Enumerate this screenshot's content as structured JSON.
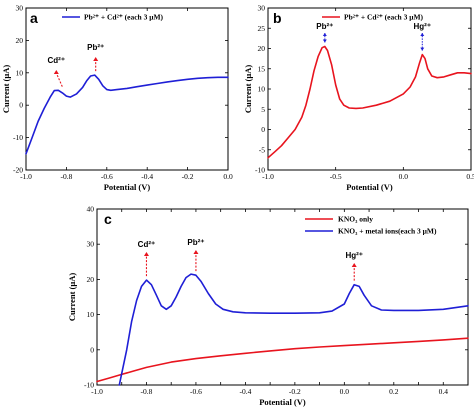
{
  "chart_data": [
    {
      "panel": "a",
      "type": "line",
      "xlabel": "Potential (V)",
      "ylabel": "Current (μA)",
      "xlim": [
        -1.0,
        0.0
      ],
      "ylim": [
        -20,
        30
      ],
      "xticks": [
        -1.0,
        -0.8,
        -0.6,
        -0.4,
        -0.2,
        0.0
      ],
      "yticks": [
        -20,
        -10,
        0,
        10,
        20,
        30
      ],
      "xtick_labels": [
        "-1.0",
        "-0.8",
        "-0.6",
        "-0.4",
        "-0.2",
        "0.0"
      ],
      "ytick_labels": [
        "-20",
        "-10",
        "0",
        "10",
        "20",
        "30"
      ],
      "legend_position": "top-right",
      "series": [
        {
          "name": "Pb²⁺ + Cd²⁺ (each 3 μM)",
          "color": "#1f1fd6",
          "x": [
            -1.0,
            -0.97,
            -0.94,
            -0.91,
            -0.88,
            -0.86,
            -0.84,
            -0.82,
            -0.8,
            -0.78,
            -0.75,
            -0.72,
            -0.7,
            -0.68,
            -0.66,
            -0.64,
            -0.62,
            -0.6,
            -0.58,
            -0.55,
            -0.5,
            -0.45,
            -0.4,
            -0.35,
            -0.3,
            -0.25,
            -0.2,
            -0.15,
            -0.1,
            -0.05,
            0.0
          ],
          "y": [
            -15,
            -10,
            -5,
            -1,
            2.5,
            4.5,
            4.6,
            3.8,
            2.8,
            2.5,
            3.5,
            5.5,
            7.5,
            9,
            9.3,
            8,
            6,
            4.8,
            4.6,
            4.8,
            5.2,
            5.7,
            6.2,
            6.7,
            7.2,
            7.6,
            8,
            8.3,
            8.5,
            8.6,
            8.6
          ]
        }
      ],
      "annotations": [
        {
          "text": "Cd²⁺",
          "x": -0.85
        },
        {
          "text": "Pb²⁺",
          "x": -0.655
        }
      ]
    },
    {
      "panel": "b",
      "type": "line",
      "xlabel": "Potential (V)",
      "ylabel": "Current (μA)",
      "xlim": [
        -1.0,
        0.5
      ],
      "ylim": [
        -10,
        30
      ],
      "xticks": [
        -1.0,
        -0.5,
        0.0,
        0.5
      ],
      "yticks": [
        -10,
        -5,
        0,
        5,
        10,
        15,
        20,
        25,
        30
      ],
      "xtick_labels": [
        "-1.0",
        "-0.5",
        "0.0",
        "0.5"
      ],
      "ytick_labels": [
        "-10",
        "-5",
        "0",
        "5",
        "10",
        "15",
        "20",
        "25",
        "30"
      ],
      "legend_position": "top-right",
      "series": [
        {
          "name": "Pb²⁺ + Cd²⁺ (each 3 μM)",
          "color": "#e8141e",
          "x": [
            -1.0,
            -0.95,
            -0.9,
            -0.85,
            -0.8,
            -0.75,
            -0.72,
            -0.69,
            -0.66,
            -0.63,
            -0.6,
            -0.58,
            -0.56,
            -0.53,
            -0.5,
            -0.47,
            -0.44,
            -0.4,
            -0.35,
            -0.3,
            -0.2,
            -0.1,
            0.0,
            0.05,
            0.09,
            0.12,
            0.14,
            0.16,
            0.18,
            0.21,
            0.25,
            0.3,
            0.35,
            0.4,
            0.45,
            0.5
          ],
          "y": [
            -7,
            -5.5,
            -4,
            -2,
            0,
            3,
            6,
            10,
            14.5,
            18,
            20.2,
            20.5,
            19.5,
            16,
            11,
            7.5,
            6,
            5.3,
            5.2,
            5.3,
            6,
            7,
            8.8,
            10.5,
            13,
            16.5,
            18.5,
            17.5,
            15,
            13.2,
            12.8,
            13,
            13.5,
            14,
            14,
            13.8
          ]
        }
      ],
      "annotations": [
        {
          "text": "Pb²⁺",
          "x": -0.58
        },
        {
          "text": "Hg²⁺",
          "x": 0.14
        }
      ]
    },
    {
      "panel": "c",
      "type": "line",
      "xlabel": "Potential (V)",
      "ylabel": "Current (μA)",
      "xlim": [
        -1.0,
        0.5
      ],
      "ylim": [
        -10,
        40
      ],
      "xticks": [
        -1.0,
        -0.9,
        -0.8,
        -0.7,
        -0.6,
        -0.5,
        -0.4,
        -0.3,
        -0.2,
        -0.1,
        0.0,
        0.1,
        0.2,
        0.3,
        0.4,
        0.5
      ],
      "yticks": [
        -10,
        0,
        10,
        20,
        30,
        40
      ],
      "xtick_labels": [
        "-1.0",
        "",
        "-0.8",
        "",
        "-0.6",
        "",
        "-0.4",
        "",
        "-0.2",
        "",
        "0.0",
        "",
        "0.2",
        "",
        "0.4",
        ""
      ],
      "ytick_labels": [
        "-10",
        "0",
        "10",
        "20",
        "30",
        "40"
      ],
      "legend_position": "top-right",
      "series": [
        {
          "name": "KNO₃ only",
          "color": "#e8141e",
          "x": [
            -1.0,
            -0.95,
            -0.9,
            -0.85,
            -0.8,
            -0.7,
            -0.6,
            -0.5,
            -0.4,
            -0.3,
            -0.2,
            -0.1,
            0.0,
            0.1,
            0.2,
            0.3,
            0.4,
            0.5
          ],
          "y": [
            -9,
            -8,
            -7,
            -6,
            -5,
            -3.5,
            -2.5,
            -1.7,
            -1,
            -0.3,
            0.3,
            0.8,
            1.2,
            1.6,
            2,
            2.4,
            2.8,
            3.3
          ]
        },
        {
          "name": "KNO₃ + metal ions(each 3 μM)",
          "color": "#1f1fd6",
          "x": [
            -0.91,
            -0.88,
            -0.86,
            -0.84,
            -0.82,
            -0.8,
            -0.78,
            -0.76,
            -0.74,
            -0.72,
            -0.7,
            -0.68,
            -0.66,
            -0.64,
            -0.62,
            -0.6,
            -0.58,
            -0.55,
            -0.52,
            -0.49,
            -0.45,
            -0.4,
            -0.3,
            -0.2,
            -0.1,
            -0.05,
            0.0,
            0.02,
            0.04,
            0.06,
            0.08,
            0.11,
            0.15,
            0.2,
            0.3,
            0.4,
            0.5
          ],
          "y": [
            -10,
            0,
            8,
            14,
            18,
            19.8,
            18.5,
            15.5,
            12.5,
            11.5,
            12.5,
            15,
            18,
            20.5,
            21.5,
            21.2,
            19.5,
            16,
            13,
            11.5,
            10.8,
            10.5,
            10.4,
            10.4,
            10.5,
            11,
            13,
            16,
            18.5,
            18,
            15.5,
            12.5,
            11.3,
            11.2,
            11.2,
            11.5,
            12.5
          ]
        }
      ],
      "annotations": [
        {
          "text": "Cd²⁺",
          "x": -0.8
        },
        {
          "text": "Pb²⁺",
          "x": -0.6
        },
        {
          "text": "Hg²⁺",
          "x": 0.04
        }
      ]
    }
  ]
}
